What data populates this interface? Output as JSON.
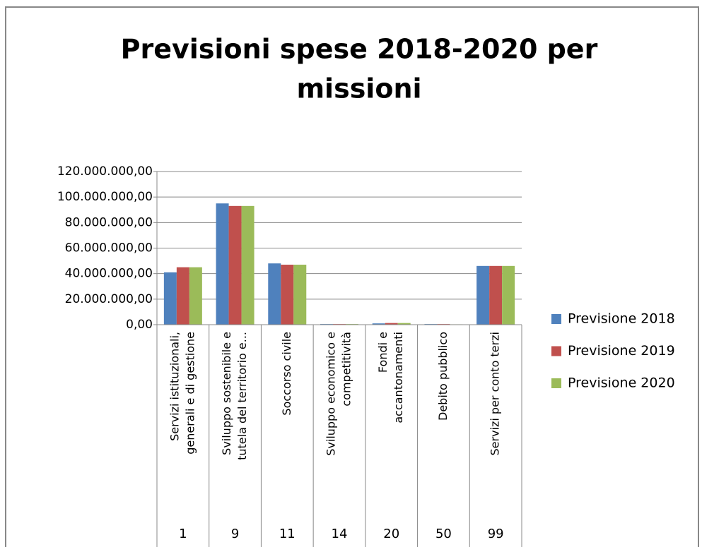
{
  "chart_data": {
    "type": "bar",
    "title": [
      "Previsioni spese 2018-2020 per",
      "missioni"
    ],
    "categories": [
      "1",
      "9",
      "11",
      "14",
      "20",
      "50",
      "99"
    ],
    "category_labels": [
      [
        "Servizi istituzionali,",
        "generali e di gestione"
      ],
      [
        "Sviluppo sostenibile e",
        "tutela del territorio e..."
      ],
      [
        "Soccorso civile"
      ],
      [
        "Sviluppo economico e",
        "competitività"
      ],
      [
        "Fondi e",
        "accantonamenti"
      ],
      [
        "Debito pubblico"
      ],
      [
        "Servizi per conto terzi"
      ]
    ],
    "series": [
      {
        "name": "Previsione 2018",
        "color": "#4f81bd",
        "values": [
          41000000,
          95000000,
          48000000,
          500000,
          1000000,
          500000,
          46000000
        ]
      },
      {
        "name": "Previsione 2019",
        "color": "#c0504d",
        "values": [
          45000000,
          93000000,
          47000000,
          500000,
          1300000,
          500000,
          46000000
        ]
      },
      {
        "name": "Previsione 2020",
        "color": "#9bbb59",
        "values": [
          45000000,
          93000000,
          47000000,
          500000,
          1300000,
          300000,
          46000000
        ]
      }
    ],
    "ylim": [
      0,
      120000000
    ],
    "yticks": [
      {
        "value": 0,
        "label": "0,00"
      },
      {
        "value": 20000000,
        "label": "20.000.000,00"
      },
      {
        "value": 40000000,
        "label": "40.000.000,00"
      },
      {
        "value": 60000000,
        "label": "60.000.000,00"
      },
      {
        "value": 80000000,
        "label": "80.000.000,00"
      },
      {
        "value": 100000000,
        "label": "100.000.000,00"
      },
      {
        "value": 120000000,
        "label": "120.000.000,00"
      }
    ],
    "grid": true,
    "legend": "right"
  }
}
